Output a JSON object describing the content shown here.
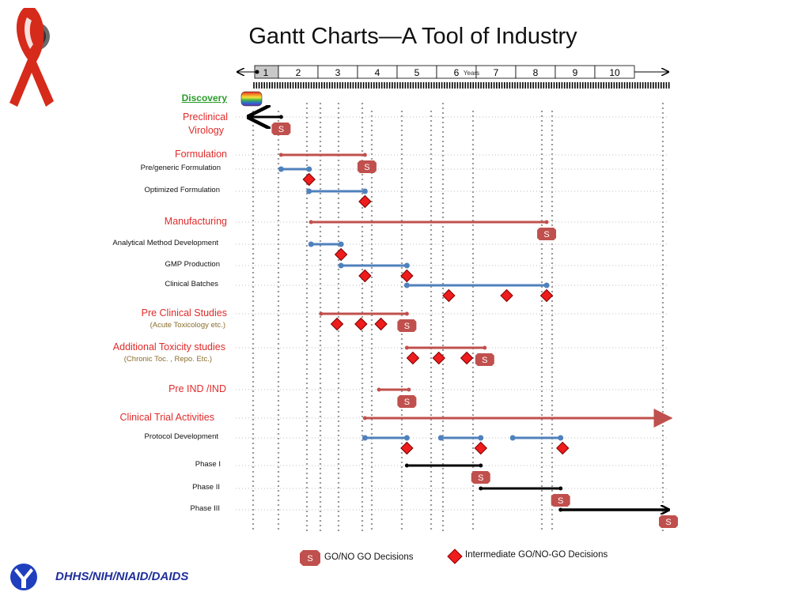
{
  "title": "Gantt Charts—A Tool of Industry",
  "years_label": "Years",
  "footer": "DHHS/NIH/NIAID/DAIDS",
  "legend": {
    "s_badge": "S",
    "s_text": "GO/NO GO Decisions",
    "diamond_text": "Intermediate GO/NO-GO Decisions"
  },
  "colors": {
    "phase_bar": "#c0504d",
    "task_bar": "#4f81bd",
    "clinical_bar": "#000000",
    "diamond": "#ee1c1c",
    "badge": "#c0504d",
    "label_red": "#e02b2b"
  },
  "rows": [
    {
      "id": "discovery",
      "label": "Discovery",
      "level": "green"
    },
    {
      "id": "preclinical",
      "label": "Preclinical",
      "label2": "Virology",
      "level": 1
    },
    {
      "id": "formulation",
      "label": "Formulation",
      "level": 1
    },
    {
      "id": "pregeneric",
      "label": "Pre/generic Formulation",
      "level": 2
    },
    {
      "id": "optimized",
      "label": "Optimized Formulation",
      "level": 2
    },
    {
      "id": "manufacturing",
      "label": "Manufacturing",
      "level": 1
    },
    {
      "id": "analytical",
      "label": "Analytical Method Development",
      "level": 2
    },
    {
      "id": "gmp",
      "label": "GMP Production",
      "level": 2
    },
    {
      "id": "batches",
      "label": "Clinical Batches",
      "level": 2
    },
    {
      "id": "preclinstudies",
      "label": "Pre Clinical Studies",
      "sub": "(Acute Toxicology etc.)",
      "level": 1
    },
    {
      "id": "addtox",
      "label": "Additional Toxicity studies",
      "sub": "(Chronic Toc. , Repo. Etc.)",
      "level": 1
    },
    {
      "id": "preind",
      "label": "Pre IND /IND",
      "level": 1
    },
    {
      "id": "clintrial",
      "label": "Clinical Trial Activities",
      "level": 1
    },
    {
      "id": "protocol",
      "label": "Protocol Development",
      "level": 2
    },
    {
      "id": "phase1",
      "label": "Phase I",
      "level": 2
    },
    {
      "id": "phase2",
      "label": "Phase II",
      "level": 2
    },
    {
      "id": "phase3",
      "label": "Phase III",
      "level": 2
    }
  ],
  "chart_data": {
    "type": "gantt",
    "title": "Gantt Charts—A Tool of Industry",
    "xlabel": "Years",
    "x_ticks": [
      "1",
      "2",
      "3",
      "4",
      "5",
      "6",
      "7",
      "8",
      "9",
      "10"
    ],
    "xlim": [
      0.0,
      10.5
    ],
    "bars": [
      {
        "row": "preclinical",
        "start": 0.0,
        "end": 0.8,
        "kind": "clinical",
        "arrow_left": true
      },
      {
        "row": "formulation",
        "start": 0.8,
        "end": 2.9,
        "kind": "phase"
      },
      {
        "row": "pregeneric",
        "start": 0.8,
        "end": 1.5,
        "kind": "task"
      },
      {
        "row": "optimized",
        "start": 1.5,
        "end": 2.9,
        "kind": "task"
      },
      {
        "row": "manufacturing",
        "start": 1.55,
        "end": 7.45,
        "kind": "phase"
      },
      {
        "row": "analytical",
        "start": 1.55,
        "end": 2.3,
        "kind": "task"
      },
      {
        "row": "gmp",
        "start": 2.3,
        "end": 3.95,
        "kind": "task"
      },
      {
        "row": "batches",
        "start": 3.95,
        "end": 7.45,
        "kind": "task"
      },
      {
        "row": "preclinstudies",
        "start": 1.8,
        "end": 3.95,
        "kind": "phase"
      },
      {
        "row": "addtox",
        "start": 3.95,
        "end": 5.9,
        "kind": "phase"
      },
      {
        "row": "preind",
        "start": 3.25,
        "end": 4.0,
        "kind": "phase"
      },
      {
        "row": "clintrial",
        "start": 2.9,
        "end": 10.55,
        "kind": "phase",
        "arrow_right": true
      },
      {
        "row": "protocol",
        "start": 2.9,
        "end": 3.95,
        "kind": "task"
      },
      {
        "row": "protocol",
        "start": 4.8,
        "end": 5.8,
        "kind": "task"
      },
      {
        "row": "protocol",
        "start": 6.6,
        "end": 7.8,
        "kind": "task"
      },
      {
        "row": "phase1",
        "start": 3.95,
        "end": 5.8,
        "kind": "clinical"
      },
      {
        "row": "phase2",
        "start": 5.8,
        "end": 7.8,
        "kind": "clinical"
      },
      {
        "row": "phase3",
        "start": 7.8,
        "end": 10.5,
        "kind": "clinical",
        "arrow_right": true,
        "thick": true
      }
    ],
    "go_no_go_decisions": [
      {
        "row": "preclinical",
        "x": 0.8
      },
      {
        "row": "formulation",
        "x": 2.95
      },
      {
        "row": "manufacturing",
        "x": 7.45
      },
      {
        "row": "preclinstudies",
        "x": 3.95
      },
      {
        "row": "addtox",
        "x": 5.9
      },
      {
        "row": "preind",
        "x": 3.95
      },
      {
        "row": "phase1",
        "x": 5.8
      },
      {
        "row": "phase2",
        "x": 7.8
      },
      {
        "row": "phase3",
        "x": 10.5
      }
    ],
    "intermediate_decisions": [
      {
        "row": "pregeneric",
        "x": 1.5
      },
      {
        "row": "optimized",
        "x": 2.9
      },
      {
        "row": "analytical",
        "x": 2.3
      },
      {
        "row": "gmp",
        "x": 2.9
      },
      {
        "row": "gmp",
        "x": 3.95
      },
      {
        "row": "batches",
        "x": 5.0
      },
      {
        "row": "batches",
        "x": 6.45
      },
      {
        "row": "batches",
        "x": 7.45
      },
      {
        "row": "preclinstudies",
        "x": 2.2
      },
      {
        "row": "preclinstudies",
        "x": 2.8
      },
      {
        "row": "preclinstudies",
        "x": 3.3
      },
      {
        "row": "addtox",
        "x": 4.1
      },
      {
        "row": "addtox",
        "x": 4.75
      },
      {
        "row": "addtox",
        "x": 5.45
      },
      {
        "row": "protocol",
        "x": 3.95
      },
      {
        "row": "protocol",
        "x": 5.8
      },
      {
        "row": "protocol",
        "x": 7.85
      }
    ]
  }
}
